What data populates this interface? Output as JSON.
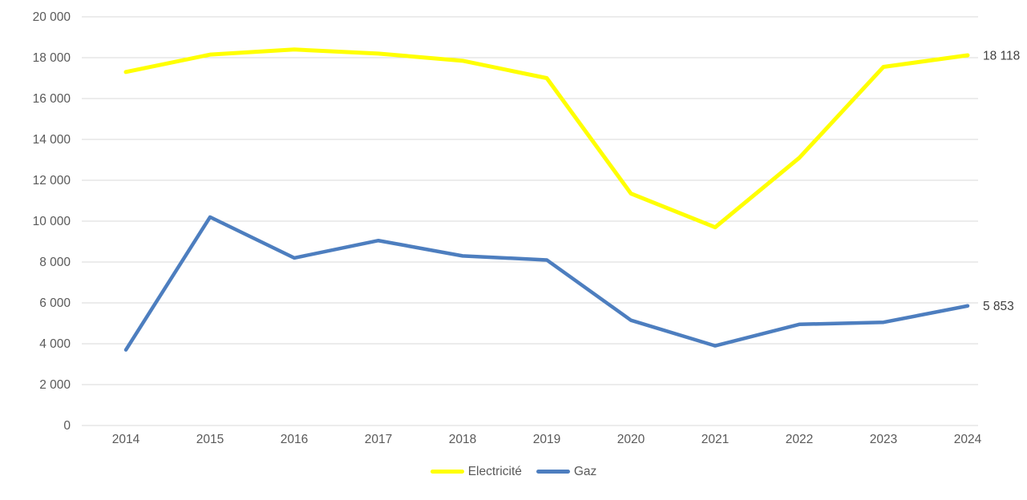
{
  "chart_data": {
    "type": "line",
    "title": "",
    "categories": [
      "2014",
      "2015",
      "2016",
      "2017",
      "2018",
      "2019",
      "2020",
      "2021",
      "2022",
      "2023",
      "2024"
    ],
    "series": [
      {
        "id": "electricite",
        "name": "Electricité",
        "color": "#FFFF00",
        "values": [
          17300,
          18150,
          18400,
          18200,
          17850,
          17000,
          11350,
          9700,
          13100,
          17550,
          18118
        ],
        "end_label": "18 118"
      },
      {
        "id": "gaz",
        "name": "Gaz",
        "color": "#4D7EBF",
        "values": [
          3700,
          10200,
          8200,
          9050,
          8300,
          8100,
          5150,
          3900,
          4950,
          5050,
          5853
        ],
        "end_label": "5 853"
      }
    ],
    "ylim": [
      0,
      20000
    ],
    "ytick_step": 2000,
    "ytick_labels": [
      "0",
      "2 000",
      "4 000",
      "6 000",
      "8 000",
      "10 000",
      "12 000",
      "14 000",
      "16 000",
      "18 000",
      "20 000"
    ],
    "grid": "horizontal",
    "legend_position": "bottom",
    "axis_label_color": "#595959",
    "gridline_color": "#D9D9D9",
    "data_label_color": "#404040",
    "background_color": "#FFFFFF"
  }
}
